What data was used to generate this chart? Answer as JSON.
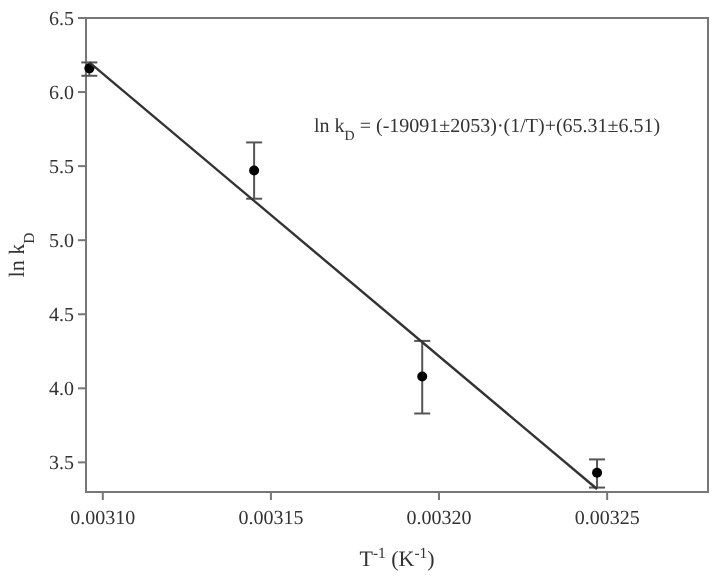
{
  "chart_data": {
    "type": "scatter",
    "xlabel": "T$^{-1}$ (K$^{-1}$)",
    "ylabel": "ln k$_{D}$",
    "annotations": [
      "ln k$_{D}$ = (-19091±2053)·(1/T)+(65.31±6.51)"
    ],
    "xlim": [
      0.003095,
      0.00328
    ],
    "xticks": [
      {
        "value": 0.0031,
        "label": "0.00310"
      },
      {
        "value": 0.00315,
        "label": "0.00315"
      },
      {
        "value": 0.0032,
        "label": "0.00320"
      },
      {
        "value": 0.00325,
        "label": "0.00325"
      }
    ],
    "ylim": [
      3.3,
      6.5
    ],
    "yticks": [
      {
        "value": 3.5,
        "label": "3.5"
      },
      {
        "value": 4,
        "label": "4.0"
      },
      {
        "value": 4.5,
        "label": "4.5"
      },
      {
        "value": 5,
        "label": "5.0"
      },
      {
        "value": 5.5,
        "label": "5.5"
      },
      {
        "value": 6,
        "label": "6.0"
      },
      {
        "value": 6.5,
        "label": "6.5"
      }
    ],
    "grid": false,
    "series": [
      {
        "color": "#000000",
        "marker": "circle",
        "x": [
          0.003096,
          0.003145,
          0.003195,
          0.003247
        ],
        "values": [
          6.16,
          5.47,
          4.08,
          3.43
        ],
        "errors": [
          [
            6.11,
            6.2
          ],
          [
            5.28,
            5.66
          ],
          [
            3.83,
            4.32
          ],
          [
            3.33,
            3.52
          ]
        ]
      },
      {
        "type": "line",
        "color": "#333333",
        "x": [
          0.003096,
          0.003247
        ],
        "values": [
          6.2,
          3.32
        ],
        "line_style": "solid",
        "marker": "none"
      }
    ]
  }
}
